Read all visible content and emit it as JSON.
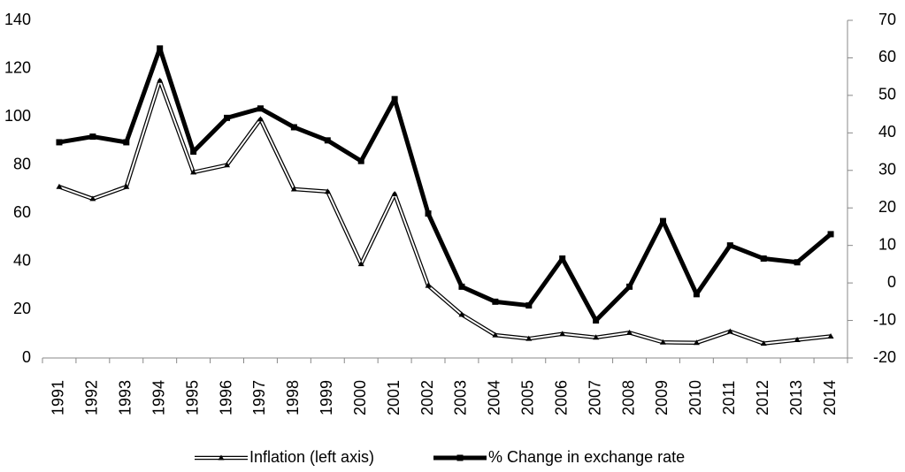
{
  "chart_data": {
    "type": "line",
    "categories": [
      "1991",
      "1992",
      "1993",
      "1994",
      "1995",
      "1996",
      "1997",
      "1998",
      "1999",
      "2000",
      "2001",
      "2002",
      "2003",
      "2004",
      "2005",
      "2006",
      "2007",
      "2008",
      "2009",
      "2010",
      "2011",
      "2012",
      "2013",
      "2014"
    ],
    "series": [
      {
        "name": "Inflation (left axis)",
        "color": "#000000",
        "style": "double",
        "axis": "y",
        "values": [
          71,
          66,
          71,
          115,
          77,
          80,
          99,
          70,
          69,
          39,
          68,
          30,
          18,
          9.5,
          8,
          10,
          8.5,
          10.5,
          6.5,
          6.3,
          11,
          6,
          7.5,
          9
        ]
      },
      {
        "name": "% Change in exchange rate",
        "color": "#000000",
        "style": "thick",
        "axis": "y2",
        "values": [
          37.5,
          39,
          37.5,
          62.5,
          35,
          44,
          46.5,
          41.5,
          38,
          32.5,
          49,
          18.5,
          -1,
          -5,
          -6,
          6.5,
          -10,
          -1,
          16.5,
          -3,
          10,
          6.5,
          5.5,
          13
        ]
      }
    ],
    "ylim": [
      0,
      140
    ],
    "yticks": [
      0,
      20,
      40,
      60,
      80,
      100,
      120,
      140
    ],
    "y2lim": [
      -20,
      70
    ],
    "y2ticks": [
      -20,
      -10,
      0,
      10,
      20,
      30,
      40,
      50,
      60,
      70
    ],
    "grid": false,
    "legend": "bottom"
  }
}
